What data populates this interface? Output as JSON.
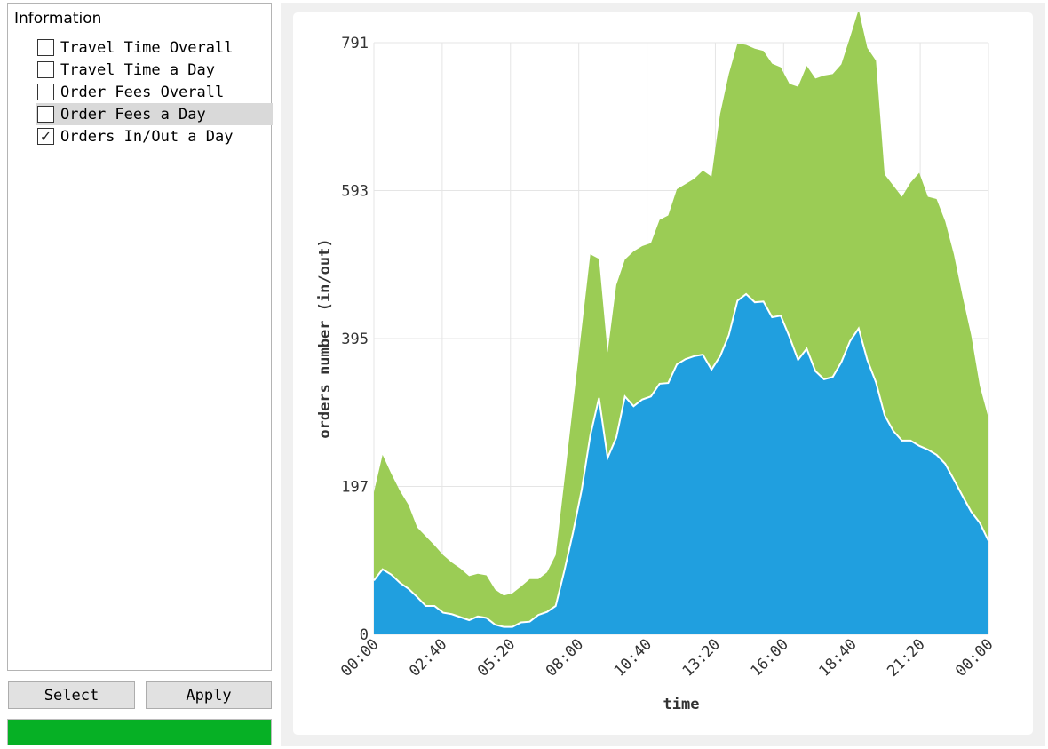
{
  "tree": {
    "root_label": "Information",
    "items": [
      {
        "label": "Travel Time Overall",
        "checked": false,
        "selected": false
      },
      {
        "label": "Travel Time a Day",
        "checked": false,
        "selected": false
      },
      {
        "label": "Order Fees Overall",
        "checked": false,
        "selected": false
      },
      {
        "label": "Order Fees a Day",
        "checked": false,
        "selected": true
      },
      {
        "label": "Orders In/Out a Day",
        "checked": true,
        "selected": false
      }
    ]
  },
  "buttons": {
    "select_label": "Select",
    "apply_label": "Apply"
  },
  "progress": {
    "value_percent": 100,
    "color": "#06b025"
  },
  "chart_data": {
    "type": "area",
    "stacked": true,
    "xlabel": "time",
    "ylabel": "orders number (in/out)",
    "ylim": [
      0,
      791
    ],
    "yticks": [
      "0",
      "197",
      "395",
      "593",
      "791"
    ],
    "xticks": [
      "00:00",
      "02:40",
      "05:20",
      "08:00",
      "10:40",
      "13:20",
      "16:00",
      "18:40",
      "21:20",
      "00:00"
    ],
    "grid": true,
    "series": [
      {
        "color": "#209fdf",
        "values": [
          72,
          87,
          80,
          69,
          61,
          50,
          38,
          38,
          29,
          27,
          23,
          19,
          24,
          22,
          13,
          10,
          10,
          16,
          17,
          26,
          30,
          38,
          85,
          136,
          193,
          266,
          316,
          236,
          263,
          318,
          305,
          314,
          318,
          335,
          336,
          361,
          368,
          372,
          374,
          354,
          372,
          400,
          446,
          455,
          444,
          445,
          424,
          426,
          398,
          367,
          382,
          352,
          341,
          344,
          364,
          392,
          409,
          367,
          337,
          293,
          272,
          259,
          259,
          252,
          247,
          240,
          228,
          207,
          185,
          164,
          149,
          125
        ],
        "bottom_edge": "#ffffff"
      },
      {
        "color": "#9bcc55",
        "values": [
          118,
          153,
          135,
          123,
          112,
          93,
          93,
          81,
          77,
          69,
          65,
          59,
          57,
          57,
          47,
          42,
          45,
          48,
          57,
          48,
          53,
          68,
          120,
          170,
          215,
          242,
          186,
          141,
          204,
          183,
          207,
          205,
          205,
          219,
          224,
          234,
          234,
          237,
          246,
          258,
          324,
          349,
          344,
          333,
          339,
          335,
          339,
          332,
          338,
          365,
          378,
          391,
          406,
          405,
          398,
          406,
          426,
          417,
          430,
          322,
          328,
          326,
          345,
          365,
          338,
          342,
          324,
          301,
          267,
          236,
          183,
          164
        ]
      }
    ]
  }
}
